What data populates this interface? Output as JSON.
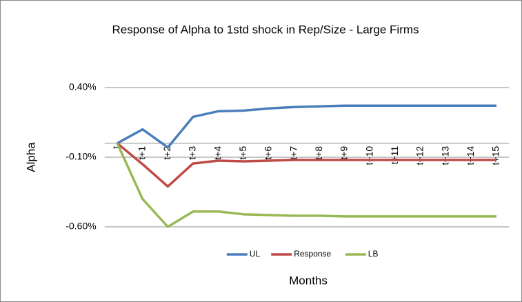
{
  "chart_data": {
    "type": "line",
    "title": "Response of Alpha to 1std shock in Rep/Size - Large Firms",
    "x_label": "Months",
    "y_label": "Alpha",
    "categories": [
      "t",
      "t+1",
      "t+2",
      "t+3",
      "t+4",
      "t+5",
      "t+6",
      "t+7",
      "t+8",
      "t+9",
      "t+10",
      "t+11",
      "t+12",
      "t+13",
      "t+14",
      "t+15"
    ],
    "series": [
      {
        "name": "UL",
        "color": "#4a7ebb",
        "values": [
          0,
          0.1,
          -0.03,
          0.19,
          0.23,
          0.235,
          0.25,
          0.26,
          0.265,
          0.27,
          0.27,
          0.27,
          0.27,
          0.27,
          0.27,
          0.27
        ]
      },
      {
        "name": "Response",
        "color": "#be4b48",
        "values": [
          0,
          -0.15,
          -0.31,
          -0.145,
          -0.125,
          -0.13,
          -0.125,
          -0.12,
          -0.12,
          -0.12,
          -0.12,
          -0.12,
          -0.12,
          -0.12,
          -0.12,
          -0.12
        ]
      },
      {
        "name": "LB",
        "color": "#98b954",
        "values": [
          0,
          -0.4,
          -0.6,
          -0.49,
          -0.49,
          -0.51,
          -0.515,
          -0.52,
          -0.52,
          -0.525,
          -0.525,
          -0.525,
          -0.525,
          -0.525,
          -0.525,
          -0.525
        ]
      }
    ],
    "ylim": [
      -0.6,
      0.4
    ],
    "yticks": [
      {
        "value": 0.4,
        "label": "0.40%"
      },
      {
        "value": -0.1,
        "label": "-0.10%"
      },
      {
        "value": -0.6,
        "label": "-0.60%"
      }
    ],
    "grid": true,
    "legend": "bottom"
  }
}
